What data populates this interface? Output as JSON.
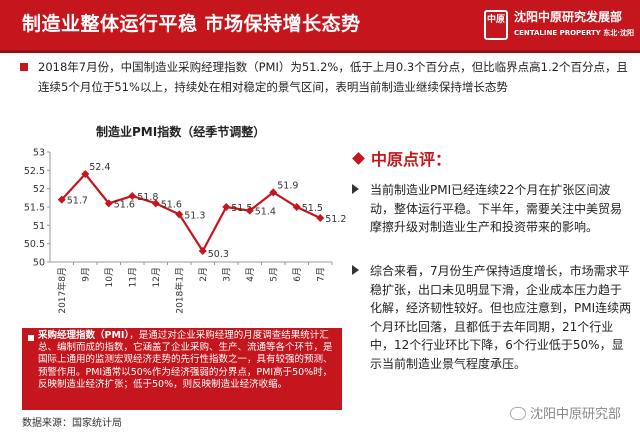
{
  "header": {
    "title": "制造业整体运行平稳 市场保持增长态势",
    "brand_name": "沈阳中原研究发展部",
    "brand_sub": "CENTALINE PROPERTY  东北·沈阳",
    "seal": "中原"
  },
  "intro": "2018年7月份，中国制造业采购经理指数（PMI）为51.2%，低于上月0.3个百分点，但比临界点高1.2个百分点，且连续5个月位于51%以上，持续处在相对稳定的景气区间，表明当前制造业继续保持增长态势",
  "chart_data": {
    "type": "line",
    "title": "制造业PMI指数（经季节调整）",
    "categories": [
      "2017年8月",
      "9月",
      "10月",
      "11月",
      "12月",
      "2018年1月",
      "2月",
      "3月",
      "4月",
      "5月",
      "6月",
      "7月"
    ],
    "values": [
      51.7,
      52.4,
      51.6,
      51.8,
      51.6,
      51.3,
      50.3,
      51.5,
      51.4,
      51.9,
      51.5,
      51.2
    ],
    "value_labels": [
      "51.7",
      "52.4",
      "51.6",
      "51.8",
      "51.6",
      "51.3",
      "50.3",
      "51.5",
      "51.4",
      "51.9",
      "51.5",
      "51.2"
    ],
    "yticks": [
      "53",
      "52.5",
      "52",
      "51.5",
      "51",
      "50.5",
      "50"
    ],
    "ylim": [
      50,
      53
    ],
    "grid": false,
    "legend": "none",
    "line_color": "#c4161c",
    "marker_color": "#c4161c"
  },
  "note": {
    "term": "采购经理指数（PMI）",
    "text": "，是通过对企业采购经理的月度调查结果统计汇总、编制而成的指数，它涵盖了企业采购、生产、流通等各个环节，是国际上通用的监测宏观经济走势的先行性指数之一，具有较强的预测、预警作用。PMI通常以50%作为经济强弱的分界点，PMI高于50%时，反映制造业经济扩张；低于50%，则反映制造业经济收缩。"
  },
  "source": "数据来源：国家统计局",
  "commentary": {
    "heading": "中原点评：",
    "points": [
      "当前制造业PMI已经连续22个月在扩张区间波动，整体运行平稳。下半年，需要关注中美贸易摩擦升级对制造业生产和投资带来的影响。",
      "综合来看，7月份生产保持适度增长，市场需求平稳扩张，出口未见明显下滑，企业成本压力趋于化解，经济韧性较好。但也应注意到，PMI连续两个月环比回落，且都低于去年同期，21个行业中，12个行业环比下降，6个行业低于50%，显示当前制造业景气程度承压。"
    ]
  },
  "watermark": "沈阳中原研究部"
}
